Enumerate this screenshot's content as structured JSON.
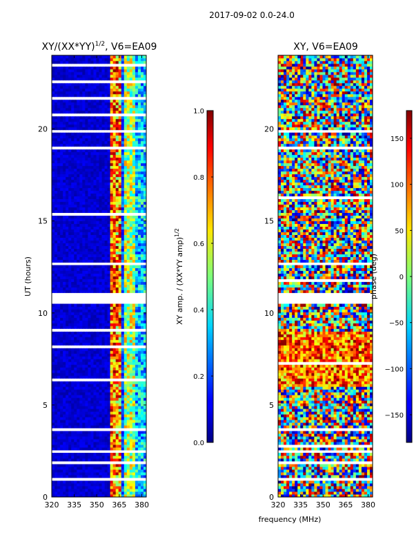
{
  "chart_data": [
    {
      "type": "heatmap",
      "suptitle": "2017-09-02 0.0-24.0",
      "title_main": "XY/(XX*YY)",
      "title_sup": "1/2",
      "title_tail": ", V6=EA09",
      "xlabel": "",
      "ylabel": "UT (hours)",
      "xlim": [
        320,
        383
      ],
      "ylim": [
        0,
        24
      ],
      "xticks": [
        "320",
        "335",
        "350",
        "365",
        "380"
      ],
      "yticks": [
        "0",
        "5",
        "10",
        "15",
        "20"
      ],
      "colorbar": {
        "label_main": "XY amp. / (XX*YY amp)",
        "label_sup": "1/2",
        "range": [
          0.0,
          1.0
        ],
        "ticks": [
          "0.0",
          "0.2",
          "0.4",
          "0.6",
          "0.8",
          "1.0"
        ],
        "colormap": "jet"
      }
    },
    {
      "type": "heatmap",
      "title": "XY, V6=EA09",
      "xlabel": "frequency (MHz)",
      "ylabel": "",
      "xlim": [
        320,
        383
      ],
      "ylim": [
        0,
        24
      ],
      "xticks": [
        "320",
        "335",
        "350",
        "365",
        "380"
      ],
      "yticks": [
        "0",
        "5",
        "10",
        "15",
        "20"
      ],
      "colorbar": {
        "label": "phase (deg)",
        "range": [
          -180,
          180
        ],
        "ticks": [
          "−150",
          "−100",
          "−50",
          "0",
          "50",
          "100",
          "150"
        ],
        "colormap": "jet"
      }
    }
  ],
  "colors": {
    "low": "#00007f",
    "high": "#7f0000",
    "gap": "#ffffff"
  }
}
